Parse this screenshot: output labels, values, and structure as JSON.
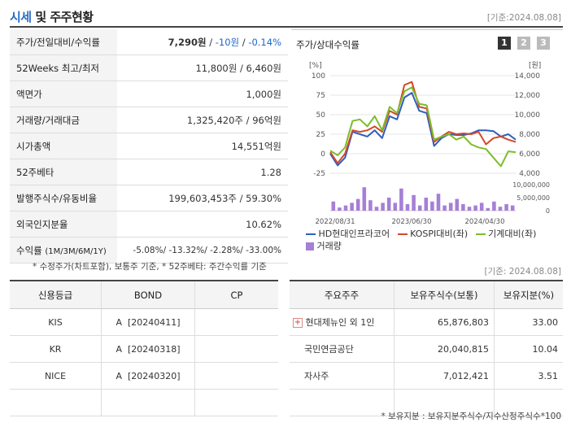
{
  "header": {
    "title_main": "시세",
    "title_rest": " 및 주주현황",
    "date": "[기준:2024.08.08]"
  },
  "summary": [
    {
      "key": "주가/전일대비/수익률",
      "value": ""
    },
    {
      "key": "52Weeks 최고/최저",
      "value": "11,800원 / 6,460원"
    },
    {
      "key": "액면가",
      "value": "1,000원"
    },
    {
      "key": "거래량/거래대금",
      "value": "1,325,420주 / 96억원"
    },
    {
      "key": "시가총액",
      "value": "14,551억원"
    },
    {
      "key": "52주베타",
      "value": "1.28"
    },
    {
      "key": "발행주식수/유동비율",
      "value": "199,603,453주 / 59.30%"
    },
    {
      "key": "외국인지분율",
      "value": "10.62%"
    },
    {
      "key": "수익률",
      "key_small": "(1M/3M/6M/1Y)",
      "value": ""
    }
  ],
  "price": {
    "price": "7,290원",
    "sep1": " / ",
    "change": "-10원",
    "sep2": " / ",
    "rate": "-0.14%"
  },
  "returns": "-5.08%/ -13.32%/ -2.28%/ -33.00%",
  "chart_panel": {
    "title": "주가/상대수익률",
    "tabs": [
      "1",
      "2",
      "3"
    ],
    "active_tab": "1",
    "colors": {
      "hd": "#2e5fbf",
      "kospi": "#d4482a",
      "machine": "#7cbd2b",
      "volume": "#a67fd6",
      "tab_active": "#333333",
      "tab_inactive": "#bbbbbb"
    }
  },
  "chart_data": {
    "type": "line",
    "left_axis_unit": "[%]",
    "right_axis_unit": "[원]",
    "left_ticks": [
      "100",
      "75",
      "50",
      "25",
      "0",
      "-25"
    ],
    "right_ticks": [
      "14,000",
      "12,000",
      "10,000",
      "8,000",
      "6,000",
      "4,000"
    ],
    "volume_ticks": [
      "10,000,000",
      "5,000,000",
      "0"
    ],
    "x_labels": [
      "2022/08/31",
      "2023/06/30",
      "2024/04/30"
    ],
    "ylim_left": [
      -25,
      100
    ],
    "ylim_right": [
      4000,
      14000
    ],
    "series": [
      {
        "name": "HD현대인프라코어",
        "values": [
          0,
          -15,
          -5,
          28,
          25,
          22,
          30,
          20,
          48,
          44,
          72,
          78,
          55,
          52,
          10,
          20,
          25,
          24,
          24,
          26,
          30,
          30,
          29,
          22,
          25,
          18
        ]
      },
      {
        "name": "KOSPI대비(좌)",
        "values": [
          2,
          -12,
          0,
          30,
          28,
          30,
          35,
          28,
          55,
          50,
          88,
          92,
          60,
          58,
          15,
          22,
          28,
          25,
          26,
          25,
          28,
          12,
          20,
          22,
          18,
          15
        ]
      },
      {
        "name": "기계대비(좌)",
        "values": [
          4,
          -2,
          8,
          42,
          44,
          35,
          48,
          30,
          60,
          52,
          80,
          85,
          64,
          62,
          18,
          22,
          25,
          18,
          22,
          12,
          8,
          6,
          -5,
          -16,
          3,
          2
        ]
      }
    ],
    "volume": {
      "name": "거래량",
      "values": [
        0.35,
        0.12,
        0.2,
        0.3,
        0.45,
        0.9,
        0.4,
        0.15,
        0.3,
        0.5,
        0.3,
        0.85,
        0.25,
        0.6,
        0.2,
        0.5,
        0.35,
        0.65,
        0.2,
        0.3,
        0.45,
        0.25,
        0.15,
        0.2,
        0.3,
        0.1,
        0.35,
        0.15,
        0.25,
        0.2
      ]
    }
  },
  "notes": {
    "summary_note": "* 수정주가(차트포함), 보통주 기준, * 52주베타: 주간수익률 기준",
    "date_mid": "[기준: 2024.08.08]",
    "share_note": "* 보유지분 : 보유지분주식수/지수산정주식수*100"
  },
  "credit": {
    "headers": [
      "신용등급",
      "BOND",
      "CP"
    ],
    "rows": [
      [
        "KIS",
        "A  [20240411]",
        ""
      ],
      [
        "KR",
        "A  [20240318]",
        ""
      ],
      [
        "NICE",
        "A  [20240320]",
        ""
      ],
      [
        "",
        "",
        ""
      ]
    ]
  },
  "holders": {
    "headers": [
      "주요주주",
      "보유주식수(보통)",
      "보유지분(%)"
    ],
    "rows": [
      {
        "name": "현대제뉴인 외 1인",
        "shares": "65,876,803",
        "pct": "33.00",
        "expand": "+"
      },
      {
        "name": "국민연금공단",
        "shares": "20,040,815",
        "pct": "10.04"
      },
      {
        "name": "자사주",
        "shares": "7,012,421",
        "pct": "3.51"
      },
      {
        "name": "",
        "shares": "",
        "pct": ""
      }
    ]
  }
}
